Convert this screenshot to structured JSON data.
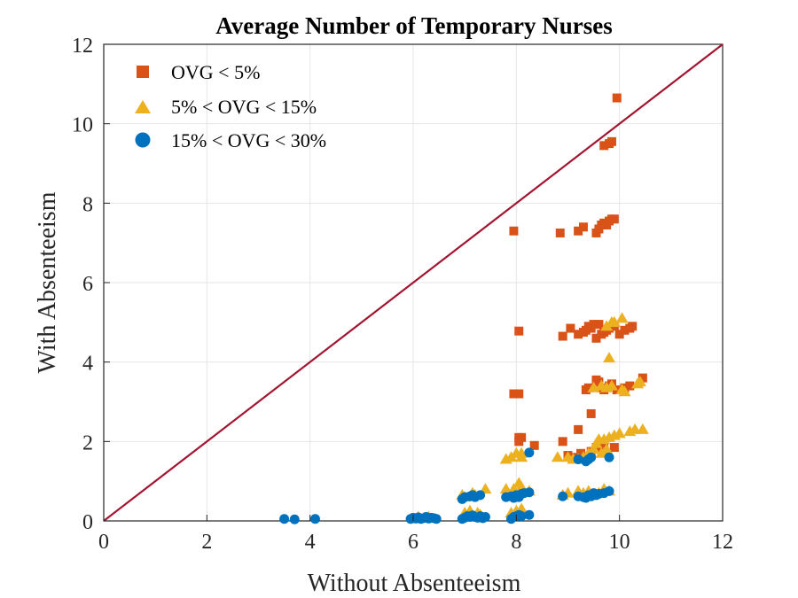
{
  "chart_data": {
    "type": "scatter",
    "title": "Average Number of Temporary Nurses",
    "xlabel": "Without Absenteeism",
    "ylabel": "With Absenteeism",
    "xlim": [
      0,
      12
    ],
    "ylim": [
      0,
      12
    ],
    "xticks": [
      "0",
      "2",
      "4",
      "6",
      "8",
      "10",
      "12"
    ],
    "yticks": [
      "0",
      "2",
      "4",
      "6",
      "8",
      "10",
      "12"
    ],
    "grid": true,
    "legend_position": "top-left",
    "reference_line": {
      "from": [
        0,
        0
      ],
      "to": [
        12,
        12
      ],
      "color": "#A2142F"
    },
    "series": [
      {
        "name": "OVG < 5%",
        "marker": "square",
        "color": "#D95319",
        "points": [
          [
            7.95,
            7.3
          ],
          [
            8.85,
            7.25
          ],
          [
            9.2,
            7.3
          ],
          [
            9.3,
            7.4
          ],
          [
            9.55,
            7.25
          ],
          [
            9.6,
            7.35
          ],
          [
            9.65,
            7.45
          ],
          [
            9.7,
            7.5
          ],
          [
            9.75,
            7.45
          ],
          [
            9.8,
            7.55
          ],
          [
            9.85,
            7.6
          ],
          [
            9.9,
            7.6
          ],
          [
            9.7,
            9.45
          ],
          [
            9.8,
            9.5
          ],
          [
            9.85,
            9.55
          ],
          [
            9.95,
            10.65
          ],
          [
            8.05,
            4.78
          ],
          [
            8.9,
            4.65
          ],
          [
            9.05,
            4.85
          ],
          [
            9.2,
            4.7
          ],
          [
            9.3,
            4.75
          ],
          [
            9.35,
            4.8
          ],
          [
            9.4,
            4.9
          ],
          [
            9.45,
            4.85
          ],
          [
            9.5,
            4.95
          ],
          [
            9.55,
            4.6
          ],
          [
            9.6,
            4.95
          ],
          [
            9.65,
            4.7
          ],
          [
            9.7,
            4.75
          ],
          [
            9.75,
            4.8
          ],
          [
            9.8,
            4.85
          ],
          [
            9.9,
            4.9
          ],
          [
            10.0,
            4.7
          ],
          [
            10.1,
            4.8
          ],
          [
            10.2,
            4.85
          ],
          [
            10.25,
            4.9
          ],
          [
            7.95,
            3.2
          ],
          [
            8.05,
            3.2
          ],
          [
            9.35,
            3.3
          ],
          [
            9.4,
            3.35
          ],
          [
            9.55,
            3.55
          ],
          [
            9.6,
            3.5
          ],
          [
            9.65,
            3.35
          ],
          [
            9.7,
            3.3
          ],
          [
            9.8,
            3.4
          ],
          [
            9.85,
            3.45
          ],
          [
            9.95,
            3.3
          ],
          [
            10.1,
            3.35
          ],
          [
            10.2,
            3.4
          ],
          [
            10.45,
            3.6
          ],
          [
            9.45,
            2.7
          ],
          [
            8.05,
            2.1
          ],
          [
            8.1,
            2.1
          ],
          [
            8.05,
            2.0
          ],
          [
            8.35,
            1.9
          ],
          [
            8.9,
            2.0
          ],
          [
            9.2,
            2.3
          ],
          [
            9.1,
            1.6
          ],
          [
            9.25,
            1.7
          ],
          [
            9.45,
            1.75
          ],
          [
            9.55,
            1.85
          ],
          [
            9.6,
            1.9
          ],
          [
            9.7,
            1.95
          ],
          [
            9.9,
            1.85
          ],
          [
            9.0,
            1.65
          ]
        ]
      },
      {
        "name": "5% < OVG < 15%",
        "marker": "triangle",
        "color": "#EDB120",
        "points": [
          [
            9.9,
            5.0
          ],
          [
            10.05,
            5.1
          ],
          [
            9.85,
            5.0
          ],
          [
            9.75,
            4.9
          ],
          [
            9.8,
            4.1
          ],
          [
            9.5,
            3.35
          ],
          [
            9.65,
            3.4
          ],
          [
            9.75,
            3.35
          ],
          [
            9.85,
            3.4
          ],
          [
            10.05,
            3.3
          ],
          [
            10.1,
            3.25
          ],
          [
            10.35,
            3.45
          ],
          [
            10.4,
            3.5
          ],
          [
            9.0,
            1.6
          ],
          [
            9.1,
            1.55
          ],
          [
            9.2,
            1.55
          ],
          [
            9.3,
            1.6
          ],
          [
            9.4,
            1.7
          ],
          [
            9.5,
            1.8
          ],
          [
            9.55,
            1.95
          ],
          [
            9.6,
            2.05
          ],
          [
            9.7,
            2.05
          ],
          [
            9.8,
            2.1
          ],
          [
            9.9,
            2.15
          ],
          [
            10.0,
            2.2
          ],
          [
            10.2,
            2.25
          ],
          [
            10.3,
            2.3
          ],
          [
            10.45,
            2.3
          ],
          [
            9.65,
            1.7
          ],
          [
            9.75,
            1.8
          ],
          [
            8.8,
            1.6
          ],
          [
            7.8,
            1.55
          ],
          [
            7.9,
            1.6
          ],
          [
            8.0,
            1.7
          ],
          [
            8.1,
            1.7
          ],
          [
            8.1,
            1.6
          ],
          [
            7.8,
            0.8
          ],
          [
            7.95,
            0.8
          ],
          [
            8.05,
            0.95
          ],
          [
            8.1,
            0.85
          ],
          [
            8.25,
            0.75
          ],
          [
            6.95,
            0.65
          ],
          [
            7.0,
            0.6
          ],
          [
            7.15,
            0.7
          ],
          [
            7.2,
            0.65
          ],
          [
            7.4,
            0.8
          ],
          [
            8.9,
            0.65
          ],
          [
            9.0,
            0.7
          ],
          [
            9.2,
            0.75
          ],
          [
            9.3,
            0.7
          ],
          [
            9.4,
            0.75
          ],
          [
            9.6,
            0.7
          ],
          [
            9.7,
            0.8
          ],
          [
            9.8,
            0.75
          ],
          [
            7.0,
            0.2
          ],
          [
            7.1,
            0.25
          ],
          [
            7.25,
            0.2
          ],
          [
            7.3,
            0.15
          ],
          [
            7.9,
            0.2
          ],
          [
            8.0,
            0.25
          ],
          [
            8.1,
            0.3
          ],
          [
            6.1,
            0.1
          ],
          [
            6.3,
            0.1
          ]
        ]
      },
      {
        "name": "15% < OVG < 30%",
        "marker": "circle",
        "color": "#0072BD",
        "points": [
          [
            3.5,
            0.05
          ],
          [
            3.7,
            0.04
          ],
          [
            4.1,
            0.05
          ],
          [
            5.95,
            0.05
          ],
          [
            6.0,
            0.08
          ],
          [
            6.05,
            0.06
          ],
          [
            6.1,
            0.09
          ],
          [
            6.15,
            0.05
          ],
          [
            6.2,
            0.07
          ],
          [
            6.25,
            0.1
          ],
          [
            6.3,
            0.06
          ],
          [
            6.35,
            0.08
          ],
          [
            6.4,
            0.07
          ],
          [
            6.45,
            0.05
          ],
          [
            6.95,
            0.05
          ],
          [
            7.0,
            0.08
          ],
          [
            7.05,
            0.12
          ],
          [
            7.1,
            0.1
          ],
          [
            7.15,
            0.14
          ],
          [
            7.2,
            0.1
          ],
          [
            7.25,
            0.08
          ],
          [
            7.3,
            0.12
          ],
          [
            7.35,
            0.07
          ],
          [
            7.4,
            0.1
          ],
          [
            7.9,
            0.05
          ],
          [
            7.95,
            0.1
          ],
          [
            8.0,
            0.12
          ],
          [
            8.05,
            0.15
          ],
          [
            8.1,
            0.12
          ],
          [
            8.25,
            0.15
          ],
          [
            6.95,
            0.55
          ],
          [
            7.0,
            0.6
          ],
          [
            7.1,
            0.62
          ],
          [
            7.15,
            0.65
          ],
          [
            7.2,
            0.6
          ],
          [
            7.3,
            0.65
          ],
          [
            7.8,
            0.6
          ],
          [
            7.9,
            0.62
          ],
          [
            7.95,
            0.58
          ],
          [
            8.0,
            0.65
          ],
          [
            8.05,
            0.6
          ],
          [
            8.1,
            0.68
          ],
          [
            8.15,
            0.7
          ],
          [
            8.25,
            0.72
          ],
          [
            8.9,
            0.62
          ],
          [
            9.2,
            0.62
          ],
          [
            9.3,
            0.6
          ],
          [
            9.35,
            0.58
          ],
          [
            9.4,
            0.65
          ],
          [
            9.45,
            0.62
          ],
          [
            9.5,
            0.7
          ],
          [
            9.55,
            0.65
          ],
          [
            9.6,
            0.68
          ],
          [
            9.7,
            0.7
          ],
          [
            9.8,
            0.75
          ],
          [
            8.25,
            1.72
          ],
          [
            9.2,
            1.55
          ],
          [
            9.35,
            1.5
          ],
          [
            9.4,
            1.55
          ],
          [
            9.45,
            1.6
          ],
          [
            9.8,
            1.6
          ]
        ]
      }
    ]
  }
}
